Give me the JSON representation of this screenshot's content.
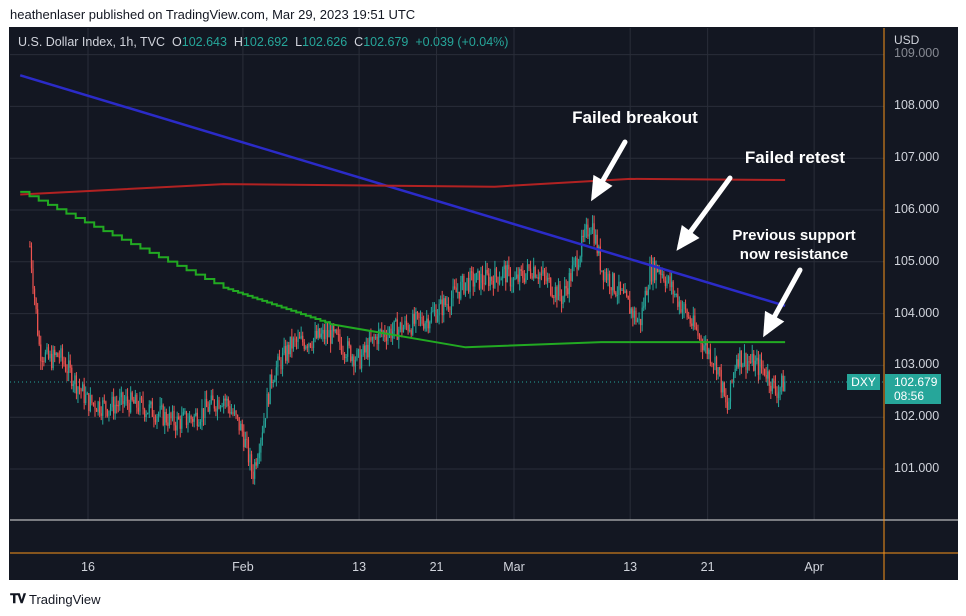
{
  "caption": "heathenlaser published on TradingView.com, Mar 29, 2023 19:51 UTC",
  "footer": {
    "logo_icon": "tradingview-logo-icon",
    "brand": "TradingView"
  },
  "legend": {
    "symbol": "U.S. Dollar Index, 1h, TVC",
    "open_label": "O",
    "open": "102.643",
    "high_label": "H",
    "high": "102.692",
    "low_label": "L",
    "low": "102.626",
    "close_label": "C",
    "close": "102.679",
    "change": "+0.039 (+0.04%)"
  },
  "price_badge": {
    "symbol": "DXY",
    "price": "102.679",
    "countdown": "08:56"
  },
  "colors": {
    "background": "#131722",
    "up": "#26a69a",
    "down": "#ef5350",
    "blue_trendline": "#2b2bc8",
    "red_ma": "#b22222",
    "green_ma": "#22aa22",
    "green_step": "#22aa22",
    "axis_border": "#f7931a"
  },
  "chart_data": {
    "type": "candlestick",
    "currency": "USD",
    "y_ticks": [
      "109.000",
      "108.000",
      "107.000",
      "106.000",
      "105.000",
      "104.000",
      "103.000",
      "102.000",
      "101.000"
    ],
    "ylim": [
      100.0,
      109.1
    ],
    "x_ticks": [
      "16",
      "Feb",
      "13",
      "21",
      "Mar",
      "13",
      "21",
      "Apr"
    ],
    "close_path": [
      [
        "Jan 10",
        105.3
      ],
      [
        "Jan 11",
        103.3
      ],
      [
        "Jan 12",
        103.1
      ],
      [
        "Jan 13",
        103.2
      ],
      [
        "Jan 16",
        102.3
      ],
      [
        "Jan 18",
        102.2
      ],
      [
        "Jan 20",
        102.3
      ],
      [
        "Jan 23",
        102.1
      ],
      [
        "Jan 25",
        101.9
      ],
      [
        "Jan 27",
        102.0
      ],
      [
        "Jan 30",
        102.4
      ],
      [
        "Feb 1",
        101.7
      ],
      [
        "Feb 2",
        100.9
      ],
      [
        "Feb 3",
        101.8
      ],
      [
        "Feb 4",
        102.8
      ],
      [
        "Feb 6",
        103.4
      ],
      [
        "Feb 8",
        103.5
      ],
      [
        "Feb 10",
        103.6
      ],
      [
        "Feb 13",
        103.1
      ],
      [
        "Feb 15",
        103.6
      ],
      [
        "Feb 17",
        103.7
      ],
      [
        "Feb 20",
        103.9
      ],
      [
        "Feb 22",
        104.2
      ],
      [
        "Feb 24",
        104.6
      ],
      [
        "Feb 27",
        104.7
      ],
      [
        "Feb 28",
        104.8
      ],
      [
        "Mar 1",
        104.6
      ],
      [
        "Mar 3",
        104.9
      ],
      [
        "Mar 6",
        104.3
      ],
      [
        "Mar 8",
        105.3
      ],
      [
        "Mar 9",
        105.8
      ],
      [
        "Mar 10",
        104.9
      ],
      [
        "Mar 13",
        104.1
      ],
      [
        "Mar 14",
        103.8
      ],
      [
        "Mar 15",
        104.8
      ],
      [
        "Mar 16",
        104.9
      ],
      [
        "Mar 20",
        103.6
      ],
      [
        "Mar 22",
        103.0
      ],
      [
        "Mar 23",
        102.1
      ],
      [
        "Mar 24",
        103.2
      ],
      [
        "Mar 27",
        102.9
      ],
      [
        "Mar 28",
        102.5
      ],
      [
        "Mar 29",
        102.68
      ]
    ],
    "blue_trendline": [
      [
        "Jan 9",
        108.6
      ],
      [
        "Mar 29",
        104.15
      ]
    ],
    "red_ma": [
      [
        "Jan 9",
        106.3
      ],
      [
        "Jan 30",
        106.5
      ],
      [
        "Feb 27",
        106.45
      ],
      [
        "Mar 13",
        106.6
      ],
      [
        "Mar 29",
        106.58
      ]
    ],
    "green_ma": [
      [
        "Feb 10",
        103.8
      ],
      [
        "Feb 24",
        103.35
      ],
      [
        "Mar 10",
        103.45
      ],
      [
        "Mar 29",
        103.45
      ]
    ],
    "green_step": [
      [
        "Jan 9",
        106.35
      ],
      [
        "Jan 30",
        104.5
      ],
      [
        "Feb 10",
        103.8
      ]
    ],
    "annotations": [
      {
        "text": "Failed breakout"
      },
      {
        "text": "Failed retest"
      },
      {
        "text": "Previous support now resistance"
      }
    ]
  }
}
